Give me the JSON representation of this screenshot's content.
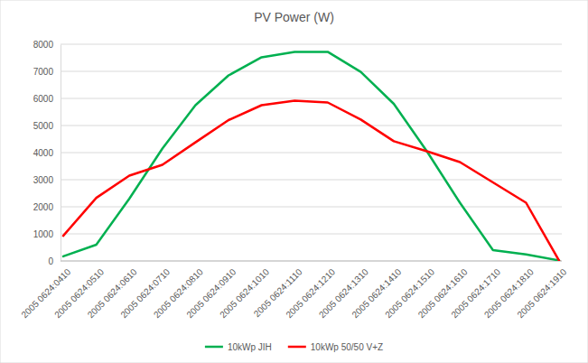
{
  "chart_data": {
    "type": "line",
    "title": "PV Power (W)",
    "categories": [
      "2005 0624:0410",
      "2005 0624:0510",
      "2005 0624:0610",
      "2005 0624:0710",
      "2005 0624:0810",
      "2005 0624:0910",
      "2005 0624:1010",
      "2005 0624:1110",
      "2005 0624:1210",
      "2005 0624:1310",
      "2005 0624:1410",
      "2005 0624:1510",
      "2005 0624:1610",
      "2005 0624:1710",
      "2005 0624:1810",
      "2005 0624:1910"
    ],
    "series": [
      {
        "name": "10kWp JIH",
        "color": "#00b050",
        "values": [
          170,
          600,
          2300,
          4150,
          5750,
          6850,
          7520,
          7720,
          7720,
          6980,
          5800,
          4050,
          2150,
          400,
          240,
          20
        ]
      },
      {
        "name": "10kWp 50/50 V+Z",
        "color": "#ff0000",
        "values": [
          930,
          2330,
          3150,
          3550,
          4380,
          5200,
          5750,
          5920,
          5850,
          5220,
          4420,
          4050,
          3650,
          2900,
          2150,
          10
        ]
      }
    ],
    "ylim": [
      0,
      8000
    ],
    "yticks": [
      0,
      1000,
      2000,
      3000,
      4000,
      5000,
      6000,
      7000,
      8000
    ],
    "grid": true,
    "legend": "bottom"
  }
}
